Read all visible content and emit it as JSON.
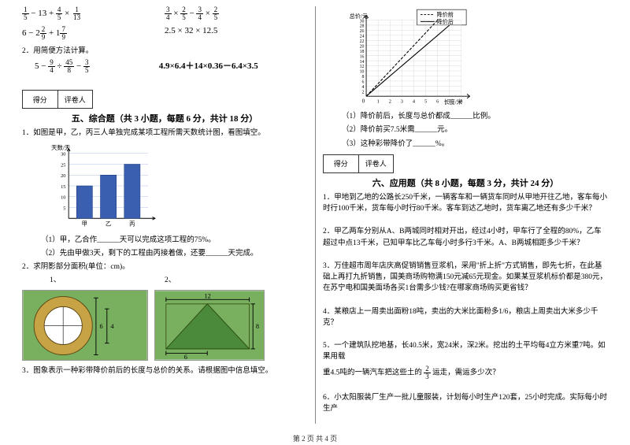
{
  "left": {
    "expressions": {
      "row1_left": "1/5 − 13 + 4/5 × 1/13",
      "row1_right": "3/4 × 2/5 − 3/4 × 2/5",
      "row2_left": "6 − 2 2/9 + 1 7/9",
      "row2_right": "2.5 × 32 × 12.5",
      "simple_label": "2．用简便方法计算。",
      "row3_left": "5 − 9/4 ÷ 45/8 − 3/5",
      "row3_right": "4.9×6.4＋14×0.36－6.4×3.5"
    },
    "score_labels": {
      "a": "得分",
      "b": "评卷人"
    },
    "section5_title": "五、综合题（共 3 小题，每题 6 分，共计 18 分）",
    "q1_stem": "1．如图是甲，乙，丙三人单独完成某项工程所需天数统计图，看图填空。",
    "bar_chart": {
      "type": "bar",
      "categories": [
        "甲",
        "乙",
        "丙"
      ],
      "values": [
        15,
        20,
        25
      ],
      "ylim": [
        0,
        30
      ],
      "ytick_step": 5,
      "y_label": "天数/天",
      "bar_color": "#3a5fb0",
      "grid_color": "#b0c4e8",
      "background_color": "#ffffff",
      "bar_width": 0.55
    },
    "q1_sub1": "（1）甲，乙合作______天可以完成这项工程的75%。",
    "q1_sub2": "（2）先由甲做3天，剩下的工程由丙接着做，还要______天完成。",
    "q2_stem": "2．求阴影部分面积(单位：cm)。",
    "q2_labels": {
      "a": "1、",
      "b": "2、"
    },
    "ring_shape": {
      "type": "infographic",
      "bg_color": "#78b060",
      "outer_ring_color": "#c8a346",
      "inner_fill": "#ffffff",
      "dim_outer": 6,
      "dim_inner": 4
    },
    "triangle_shape": {
      "type": "infographic",
      "bg_color": "#78b060",
      "fill_color": "#4a8a3a",
      "top_dim": 12,
      "right_dim": 8,
      "bottom_dim": 6
    },
    "q3_stem": "3．图象表示一种彩带降价前后的长度与总价的关系。请根据图中信息填空。"
  },
  "right": {
    "line_chart": {
      "type": "line",
      "x_label": "长度/米",
      "y_label": "总价/元",
      "xlim": [
        0,
        8
      ],
      "xtick_step": 1,
      "ylim": [
        0,
        30
      ],
      "ytick_step": 2,
      "legend": {
        "before": "降价前",
        "after": "降价后",
        "style_before": "dash",
        "style_after": "solid"
      },
      "series": [
        {
          "name": "before",
          "color": "#000000",
          "dash": "4,2",
          "points": [
            [
              0,
              0
            ],
            [
              1,
              5
            ],
            [
              2,
              10
            ],
            [
              3,
              15
            ],
            [
              4,
              20
            ],
            [
              5,
              25
            ],
            [
              6,
              30
            ]
          ]
        },
        {
          "name": "after",
          "color": "#000000",
          "dash": "none",
          "points": [
            [
              0,
              0
            ],
            [
              1,
              4
            ],
            [
              2,
              8
            ],
            [
              3,
              12
            ],
            [
              4,
              16
            ],
            [
              5,
              20
            ],
            [
              6,
              24
            ],
            [
              7,
              28
            ]
          ]
        }
      ],
      "grid_color": "#cccccc",
      "background_color": "#ffffff"
    },
    "q3_sub1": "（1）降价前后，长度与总价都成______比例。",
    "q3_sub2": "（2）降价前买7.5米需______元。",
    "q3_sub3": "（3）这种彩带降价了______%。",
    "score_labels": {
      "a": "得分",
      "b": "评卷人"
    },
    "section6_title": "六、应用题（共 8 小题，每题 3 分，共计 24 分）",
    "q1": "1．甲地到乙地的公路长250千米，一辆客车和一辆货车同时从甲地开往乙地，客车每小时行100千米，货车每小时行80千米。客车到达乙地时，货车离乙地还有多少千米？",
    "q2": "2．甲乙两车分别从A、B两城同时相对开出，经过4小时，甲车行了全程的80%，乙车超过中点13千米，已知甲车比乙车每小时多行3千米。A、B两城相距多少千米？",
    "q3": "3．万佳超市周年店庆高促销销售豆浆机，采用\"折上折\"方式销售，即先七折，在此基础上再打九折销售，国美商场购物满150元减65元现金。如果某豆浆机标价都是380元，在苏宁电和国美面场各买1台需多少钱?在哪家商场购买更省钱？",
    "q4": "4．某粮店上一周卖出面粉18吨，卖出的大米比面粉多1/6，粮店上周卖出大米多少千克？",
    "q5": "5．一个建筑队挖地基，长40.5米，宽24米，深2米。挖出的土平均每4立方米重7吨。如果用载",
    "q5b_pre": "重4.5吨的一辆汽车把这些土的 ",
    "q5b_frac_n": "2",
    "q5b_frac_d": "3",
    "q5b_post": " 运走，需运多少次？",
    "q6": "6．小太阳服装厂生产一批儿童服装，计划每小时生产120套，25小时完成。实际每小时生产"
  },
  "footer": "第 2 页 共 4 页"
}
